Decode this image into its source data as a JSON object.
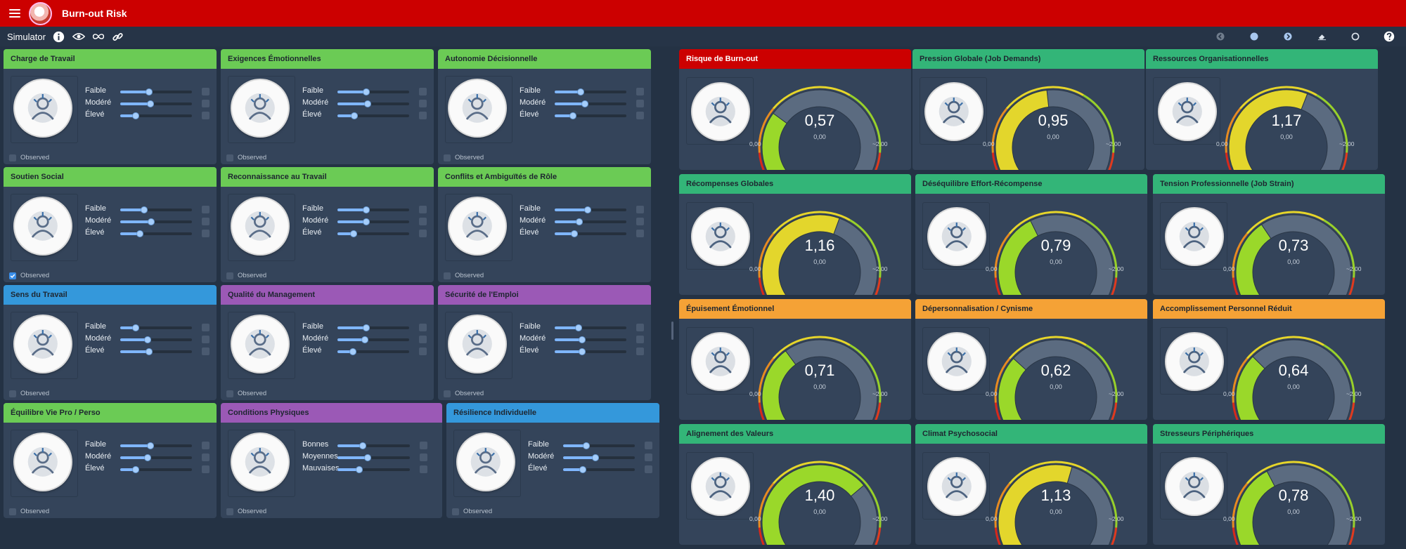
{
  "app": {
    "title": "Burn-out Risk"
  },
  "toolbar": {
    "simulator_label": "Simulator"
  },
  "observed_label": "Observed",
  "input_nodes": [
    {
      "title": "Charge de Travail",
      "color": "#6bcb55",
      "icon": "gauge-document-icon",
      "states": [
        "Faible",
        "Modéré",
        "Élevé"
      ],
      "levels": [
        0.4,
        0.42,
        0.22
      ],
      "observed": false
    },
    {
      "title": "Exigences Émotionnelles",
      "color": "#6bcb55",
      "icon": "emotional-mask-icon",
      "states": [
        "Faible",
        "Modéré",
        "Élevé"
      ],
      "levels": [
        0.4,
        0.42,
        0.24
      ],
      "observed": false
    },
    {
      "title": "Autonomie Décisionnelle",
      "color": "#6bcb55",
      "icon": "decision-arrows-icon",
      "states": [
        "Faible",
        "Modéré",
        "Élevé"
      ],
      "levels": [
        0.36,
        0.42,
        0.25
      ],
      "observed": false
    },
    {
      "title": "Soutien Social",
      "color": "#6bcb55",
      "icon": "people-support-icon",
      "states": [
        "Faible",
        "Modéré",
        "Élevé"
      ],
      "levels": [
        0.33,
        0.43,
        0.27
      ],
      "observed": true
    },
    {
      "title": "Reconnaissance au Travail",
      "color": "#6bcb55",
      "icon": "medal-icon",
      "states": [
        "Faible",
        "Modéré",
        "Élevé"
      ],
      "levels": [
        0.4,
        0.4,
        0.23
      ],
      "observed": false
    },
    {
      "title": "Conflits et Ambiguïtés de Rôle",
      "color": "#6bcb55",
      "icon": "conflict-arrows-icon",
      "states": [
        "Faible",
        "Modéré",
        "Élevé"
      ],
      "levels": [
        0.46,
        0.34,
        0.27
      ],
      "observed": false
    },
    {
      "title": "Sens du Travail",
      "color": "#3498db",
      "icon": "head-gears-icon",
      "states": [
        "Faible",
        "Modéré",
        "Élevé"
      ],
      "levels": [
        0.22,
        0.38,
        0.4
      ],
      "observed": false
    },
    {
      "title": "Qualité du Management",
      "color": "#9b59b6",
      "icon": "manager-meeting-icon",
      "states": [
        "Faible",
        "Modéré",
        "Élevé"
      ],
      "levels": [
        0.4,
        0.38,
        0.22
      ],
      "observed": false
    },
    {
      "title": "Sécurité de l'Emploi",
      "color": "#9b59b6",
      "icon": "building-tools-icon",
      "states": [
        "Faible",
        "Modéré",
        "Élevé"
      ],
      "levels": [
        0.33,
        0.38,
        0.38
      ],
      "observed": false
    },
    {
      "title": "Équilibre Vie Pro / Perso",
      "color": "#6bcb55",
      "icon": "meditation-balance-icon",
      "states": [
        "Faible",
        "Modéré",
        "Élevé"
      ],
      "levels": [
        0.42,
        0.38,
        0.22
      ],
      "observed": false
    },
    {
      "title": "Conditions Physiques",
      "color": "#9b59b6",
      "icon": "desk-worker-icon",
      "states": [
        "Bonnes",
        "Moyennes",
        "Mauvaises"
      ],
      "levels": [
        0.35,
        0.42,
        0.3
      ],
      "observed": false
    },
    {
      "title": "Résilience Individuelle",
      "color": "#3498db",
      "icon": "spring-bolt-icon",
      "states": [
        "Faible",
        "Modéré",
        "Élevé"
      ],
      "levels": [
        0.32,
        0.45,
        0.27
      ],
      "observed": false
    }
  ],
  "output_nodes": [
    {
      "title": "Risque de Burn-out",
      "color": "#cc0000",
      "icon": "burnout-lightning-icon",
      "value": "0,57",
      "v": 0.57,
      "sub": "0,00",
      "min": "0,00",
      "max": "~2,00",
      "dark": true
    },
    {
      "title": "Pression Globale (Job Demands)",
      "color": "#33b578",
      "icon": "pressure-mask-icon",
      "value": "0,95",
      "v": 0.95,
      "sub": "0,00",
      "min": "0,00",
      "max": "~2,00"
    },
    {
      "title": "Ressources Organisationnelles",
      "color": "#33b578",
      "icon": "organization-shield-icon",
      "value": "1,17",
      "v": 1.17,
      "sub": "0,00",
      "min": "0,00",
      "max": "~2,00"
    },
    {
      "title": "Récompenses Globales",
      "color": "#33b578",
      "icon": "key-dollar-icon",
      "value": "1,16",
      "v": 1.16,
      "sub": "0,00",
      "min": "0,00",
      "max": "~2,00"
    },
    {
      "title": "Déséquilibre Effort-Récompense",
      "color": "#33b578",
      "icon": "imbalance-scale-icon",
      "value": "0,79",
      "v": 0.79,
      "sub": "0,00",
      "min": "0,00",
      "max": "~2,00"
    },
    {
      "title": "Tension Professionnelle (Job Strain)",
      "color": "#33b578",
      "icon": "worker-strain-icon",
      "value": "0,73",
      "v": 0.73,
      "sub": "0,00",
      "min": "0,00",
      "max": "~2,00"
    },
    {
      "title": "Épuisement Émotionnel",
      "color": "#f5a236",
      "icon": "exhausted-face-icon",
      "value": "0,71",
      "v": 0.71,
      "sub": "0,00",
      "min": "0,00",
      "max": "~2,00"
    },
    {
      "title": "Dépersonnalisation / Cynisme",
      "color": "#f5a236",
      "icon": "frozen-person-icon",
      "value": "0,62",
      "v": 0.62,
      "sub": "0,00",
      "min": "0,00",
      "max": "~2,00"
    },
    {
      "title": "Accomplissement Personnel Réduit",
      "color": "#f5a236",
      "icon": "gear-person-icon",
      "value": "0,64",
      "v": 0.64,
      "sub": "0,00",
      "min": "0,00",
      "max": "~2,00"
    },
    {
      "title": "Alignement des Valeurs",
      "color": "#33b578",
      "icon": "values-badge-icon",
      "value": "1,40",
      "v": 1.4,
      "sub": "0,00",
      "min": "0,00",
      "max": "~2,00"
    },
    {
      "title": "Climat Psychosocial",
      "color": "#33b578",
      "icon": "team-scale-icon",
      "value": "1,13",
      "v": 1.13,
      "sub": "0,00",
      "min": "0,00",
      "max": "~2,00"
    },
    {
      "title": "Stresseurs Périphériques",
      "color": "#33b578",
      "icon": "city-stress-icon",
      "value": "0,78",
      "v": 0.78,
      "sub": "0,00",
      "min": "0,00",
      "max": "~2,00"
    }
  ]
}
